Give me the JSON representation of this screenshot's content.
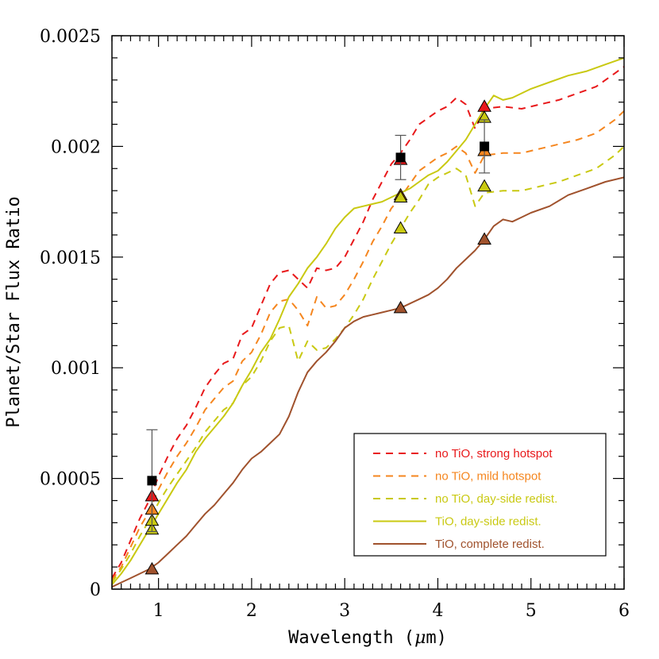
{
  "chart_data": {
    "type": "line",
    "xlabel_prefix": "Wavelength (",
    "xlabel_symbol": "μ",
    "xlabel_suffix": "m)",
    "ylabel": "Planet/Star Flux Ratio",
    "xlim": [
      0.5,
      6
    ],
    "ylim": [
      0,
      0.0025
    ],
    "x_ticks": [
      1,
      2,
      3,
      4,
      5,
      6
    ],
    "x_tick_labels": [
      "1",
      "2",
      "3",
      "4",
      "5",
      "6"
    ],
    "y_ticks": [
      0,
      0.0005,
      0.001,
      0.0015,
      0.002,
      0.0025
    ],
    "y_tick_labels": [
      "0",
      "0.0005",
      "0.001",
      "0.0015",
      "0.002",
      "0.0025"
    ],
    "legend_position": "bottom-right",
    "series": [
      {
        "name": "no TiO, strong hotspot",
        "color": "#e8191b",
        "dash": "dashed",
        "points": [
          [
            0.5,
            5e-05
          ],
          [
            0.6,
            0.00012
          ],
          [
            0.7,
            0.00022
          ],
          [
            0.8,
            0.00032
          ],
          [
            0.9,
            0.0004
          ],
          [
            1.0,
            0.00051
          ],
          [
            1.1,
            0.0006
          ],
          [
            1.2,
            0.00068
          ],
          [
            1.3,
            0.00074
          ],
          [
            1.4,
            0.00082
          ],
          [
            1.5,
            0.00091
          ],
          [
            1.6,
            0.00097
          ],
          [
            1.7,
            0.00102
          ],
          [
            1.8,
            0.00104
          ],
          [
            1.9,
            0.00115
          ],
          [
            2.0,
            0.00118
          ],
          [
            2.1,
            0.00128
          ],
          [
            2.2,
            0.00138
          ],
          [
            2.3,
            0.00143
          ],
          [
            2.4,
            0.00144
          ],
          [
            2.5,
            0.0014
          ],
          [
            2.6,
            0.00136
          ],
          [
            2.7,
            0.00145
          ],
          [
            2.8,
            0.00144
          ],
          [
            2.9,
            0.00145
          ],
          [
            3.0,
            0.0015
          ],
          [
            3.1,
            0.00158
          ],
          [
            3.2,
            0.00166
          ],
          [
            3.3,
            0.00176
          ],
          [
            3.4,
            0.00184
          ],
          [
            3.5,
            0.00192
          ],
          [
            3.6,
            0.00197
          ],
          [
            3.7,
            0.00203
          ],
          [
            3.8,
            0.0021
          ],
          [
            3.9,
            0.00213
          ],
          [
            4.0,
            0.00216
          ],
          [
            4.1,
            0.00218
          ],
          [
            4.2,
            0.00222
          ],
          [
            4.3,
            0.00219
          ],
          [
            4.4,
            0.00208
          ],
          [
            4.5,
            0.00217
          ],
          [
            4.7,
            0.00218
          ],
          [
            4.9,
            0.00217
          ],
          [
            5.1,
            0.00219
          ],
          [
            5.3,
            0.00221
          ],
          [
            5.5,
            0.00224
          ],
          [
            5.7,
            0.00227
          ],
          [
            5.9,
            0.00233
          ],
          [
            6.0,
            0.00236
          ]
        ]
      },
      {
        "name": "no TiO, mild hotspot",
        "color": "#f5861f",
        "dash": "dashed",
        "points": [
          [
            0.5,
            4e-05
          ],
          [
            0.6,
            0.0001
          ],
          [
            0.7,
            0.00019
          ],
          [
            0.8,
            0.00028
          ],
          [
            0.9,
            0.00035
          ],
          [
            1.0,
            0.00045
          ],
          [
            1.1,
            0.00053
          ],
          [
            1.2,
            0.0006
          ],
          [
            1.3,
            0.00066
          ],
          [
            1.4,
            0.00073
          ],
          [
            1.5,
            0.00081
          ],
          [
            1.6,
            0.00086
          ],
          [
            1.7,
            0.00091
          ],
          [
            1.8,
            0.00094
          ],
          [
            1.9,
            0.00103
          ],
          [
            2.0,
            0.00107
          ],
          [
            2.1,
            0.00115
          ],
          [
            2.2,
            0.00125
          ],
          [
            2.3,
            0.0013
          ],
          [
            2.4,
            0.00131
          ],
          [
            2.5,
            0.00126
          ],
          [
            2.6,
            0.00119
          ],
          [
            2.7,
            0.00132
          ],
          [
            2.8,
            0.00127
          ],
          [
            2.9,
            0.00128
          ],
          [
            3.0,
            0.00133
          ],
          [
            3.1,
            0.0014
          ],
          [
            3.2,
            0.00148
          ],
          [
            3.3,
            0.00157
          ],
          [
            3.4,
            0.00164
          ],
          [
            3.5,
            0.00172
          ],
          [
            3.6,
            0.00177
          ],
          [
            3.7,
            0.00183
          ],
          [
            3.8,
            0.00189
          ],
          [
            3.9,
            0.00192
          ],
          [
            4.0,
            0.00195
          ],
          [
            4.1,
            0.00197
          ],
          [
            4.2,
            0.002
          ],
          [
            4.3,
            0.00197
          ],
          [
            4.4,
            0.00188
          ],
          [
            4.5,
            0.00196
          ],
          [
            4.7,
            0.00197
          ],
          [
            4.9,
            0.00197
          ],
          [
            5.1,
            0.00199
          ],
          [
            5.3,
            0.00201
          ],
          [
            5.5,
            0.00203
          ],
          [
            5.7,
            0.00206
          ],
          [
            5.9,
            0.00212
          ],
          [
            6.0,
            0.00216
          ]
        ]
      },
      {
        "name": "no TiO, day-side redist.",
        "color": "#c9c912",
        "dash": "dashed",
        "points": [
          [
            0.5,
            3e-05
          ],
          [
            0.6,
            9e-05
          ],
          [
            0.7,
            0.00016
          ],
          [
            0.8,
            0.00024
          ],
          [
            0.9,
            0.00031
          ],
          [
            1.0,
            0.00039
          ],
          [
            1.1,
            0.00046
          ],
          [
            1.2,
            0.00052
          ],
          [
            1.3,
            0.00058
          ],
          [
            1.4,
            0.00064
          ],
          [
            1.5,
            0.00071
          ],
          [
            1.6,
            0.00076
          ],
          [
            1.7,
            0.00081
          ],
          [
            1.8,
            0.00084
          ],
          [
            1.9,
            0.00092
          ],
          [
            2.0,
            0.00096
          ],
          [
            2.1,
            0.00103
          ],
          [
            2.2,
            0.00112
          ],
          [
            2.3,
            0.00118
          ],
          [
            2.4,
            0.00119
          ],
          [
            2.5,
            0.00103
          ],
          [
            2.6,
            0.00112
          ],
          [
            2.7,
            0.00108
          ],
          [
            2.8,
            0.00109
          ],
          [
            2.9,
            0.00113
          ],
          [
            3.0,
            0.00118
          ],
          [
            3.1,
            0.00124
          ],
          [
            3.2,
            0.00131
          ],
          [
            3.3,
            0.0014
          ],
          [
            3.4,
            0.00148
          ],
          [
            3.5,
            0.00156
          ],
          [
            3.6,
            0.00163
          ],
          [
            3.7,
            0.0017
          ],
          [
            3.8,
            0.00176
          ],
          [
            3.9,
            0.00183
          ],
          [
            4.0,
            0.00186
          ],
          [
            4.1,
            0.00188
          ],
          [
            4.2,
            0.0019
          ],
          [
            4.3,
            0.00187
          ],
          [
            4.4,
            0.00173
          ],
          [
            4.5,
            0.00179
          ],
          [
            4.7,
            0.0018
          ],
          [
            4.9,
            0.0018
          ],
          [
            5.1,
            0.00182
          ],
          [
            5.3,
            0.00184
          ],
          [
            5.5,
            0.00187
          ],
          [
            5.7,
            0.0019
          ],
          [
            5.9,
            0.00196
          ],
          [
            6.0,
            0.002
          ]
        ]
      },
      {
        "name": "TiO, day-side redist.",
        "color": "#c9c912",
        "dash": "solid",
        "points": [
          [
            0.5,
            2e-05
          ],
          [
            0.6,
            7e-05
          ],
          [
            0.7,
            0.00013
          ],
          [
            0.8,
            0.0002
          ],
          [
            0.9,
            0.00027
          ],
          [
            1.0,
            0.00034
          ],
          [
            1.1,
            0.00041
          ],
          [
            1.2,
            0.00048
          ],
          [
            1.3,
            0.00054
          ],
          [
            1.4,
            0.00062
          ],
          [
            1.5,
            0.00068
          ],
          [
            1.6,
            0.00073
          ],
          [
            1.7,
            0.00078
          ],
          [
            1.8,
            0.00084
          ],
          [
            1.9,
            0.00092
          ],
          [
            2.0,
            0.00099
          ],
          [
            2.1,
            0.00107
          ],
          [
            2.2,
            0.00113
          ],
          [
            2.3,
            0.00122
          ],
          [
            2.4,
            0.00132
          ],
          [
            2.5,
            0.00138
          ],
          [
            2.6,
            0.00145
          ],
          [
            2.7,
            0.0015
          ],
          [
            2.8,
            0.00156
          ],
          [
            2.9,
            0.00163
          ],
          [
            3.0,
            0.00168
          ],
          [
            3.1,
            0.00172
          ],
          [
            3.2,
            0.00173
          ],
          [
            3.3,
            0.00174
          ],
          [
            3.4,
            0.00175
          ],
          [
            3.5,
            0.00177
          ],
          [
            3.6,
            0.00179
          ],
          [
            3.7,
            0.00181
          ],
          [
            3.8,
            0.00184
          ],
          [
            3.9,
            0.00187
          ],
          [
            4.0,
            0.00189
          ],
          [
            4.1,
            0.00193
          ],
          [
            4.2,
            0.00198
          ],
          [
            4.3,
            0.00203
          ],
          [
            4.4,
            0.0021
          ],
          [
            4.5,
            0.00217
          ],
          [
            4.6,
            0.00223
          ],
          [
            4.7,
            0.00221
          ],
          [
            4.8,
            0.00222
          ],
          [
            4.9,
            0.00224
          ],
          [
            5.0,
            0.00226
          ],
          [
            5.2,
            0.00229
          ],
          [
            5.4,
            0.00232
          ],
          [
            5.6,
            0.00234
          ],
          [
            5.8,
            0.00237
          ],
          [
            6.0,
            0.0024
          ]
        ]
      },
      {
        "name": "TiO, complete redist.",
        "color": "#a0522d",
        "dash": "solid",
        "points": [
          [
            0.5,
            1e-05
          ],
          [
            0.6,
            3e-05
          ],
          [
            0.7,
            5e-05
          ],
          [
            0.8,
            7e-05
          ],
          [
            0.9,
            9e-05
          ],
          [
            1.0,
            0.00012
          ],
          [
            1.1,
            0.00016
          ],
          [
            1.2,
            0.0002
          ],
          [
            1.3,
            0.00024
          ],
          [
            1.4,
            0.00029
          ],
          [
            1.5,
            0.00034
          ],
          [
            1.6,
            0.00038
          ],
          [
            1.7,
            0.00043
          ],
          [
            1.8,
            0.00048
          ],
          [
            1.9,
            0.00054
          ],
          [
            2.0,
            0.00059
          ],
          [
            2.1,
            0.00062
          ],
          [
            2.2,
            0.00066
          ],
          [
            2.3,
            0.0007
          ],
          [
            2.4,
            0.00078
          ],
          [
            2.5,
            0.00089
          ],
          [
            2.6,
            0.00098
          ],
          [
            2.7,
            0.00103
          ],
          [
            2.8,
            0.00107
          ],
          [
            2.9,
            0.00112
          ],
          [
            3.0,
            0.00118
          ],
          [
            3.1,
            0.00121
          ],
          [
            3.2,
            0.00123
          ],
          [
            3.3,
            0.00124
          ],
          [
            3.4,
            0.00125
          ],
          [
            3.5,
            0.00126
          ],
          [
            3.6,
            0.00127
          ],
          [
            3.7,
            0.00129
          ],
          [
            3.8,
            0.00131
          ],
          [
            3.9,
            0.00133
          ],
          [
            4.0,
            0.00136
          ],
          [
            4.1,
            0.0014
          ],
          [
            4.2,
            0.00145
          ],
          [
            4.3,
            0.00149
          ],
          [
            4.4,
            0.00153
          ],
          [
            4.5,
            0.00158
          ],
          [
            4.6,
            0.00164
          ],
          [
            4.7,
            0.00167
          ],
          [
            4.8,
            0.00166
          ],
          [
            4.9,
            0.00168
          ],
          [
            5.0,
            0.0017
          ],
          [
            5.2,
            0.00173
          ],
          [
            5.4,
            0.00178
          ],
          [
            5.6,
            0.00181
          ],
          [
            5.8,
            0.00184
          ],
          [
            6.0,
            0.00186
          ]
        ]
      }
    ],
    "observed": {
      "color": "#000000",
      "points": [
        {
          "x": 0.93,
          "y": 0.00049,
          "yerr_low": 0.00023,
          "yerr_high": 0.00023
        },
        {
          "x": 3.6,
          "y": 0.00195,
          "yerr_low": 0.0001,
          "yerr_high": 0.0001
        },
        {
          "x": 4.5,
          "y": 0.002,
          "yerr_low": 0.00012,
          "yerr_high": 0.00012
        }
      ]
    },
    "band_averaged_models": [
      {
        "series": "no TiO, strong hotspot",
        "color": "#e8191b",
        "points": [
          [
            0.93,
            0.00042
          ],
          [
            3.6,
            0.00194
          ],
          [
            4.5,
            0.00218
          ]
        ]
      },
      {
        "series": "no TiO, mild hotspot",
        "color": "#f5861f",
        "points": [
          [
            0.93,
            0.00036
          ],
          [
            3.6,
            0.00178
          ],
          [
            4.5,
            0.00198
          ]
        ]
      },
      {
        "series": "no TiO, day-side redist.",
        "color": "#c9c912",
        "points": [
          [
            0.93,
            0.00027
          ],
          [
            3.6,
            0.00163
          ],
          [
            4.5,
            0.00182
          ]
        ]
      },
      {
        "series": "TiO, day-side redist.",
        "color": "#c9c912",
        "points": [
          [
            0.93,
            0.00031
          ],
          [
            3.6,
            0.00177
          ],
          [
            4.5,
            0.00213
          ]
        ]
      },
      {
        "series": "TiO, complete redist.",
        "color": "#a0522d",
        "points": [
          [
            0.93,
            9e-05
          ],
          [
            3.6,
            0.00127
          ],
          [
            4.5,
            0.00158
          ]
        ]
      }
    ]
  }
}
